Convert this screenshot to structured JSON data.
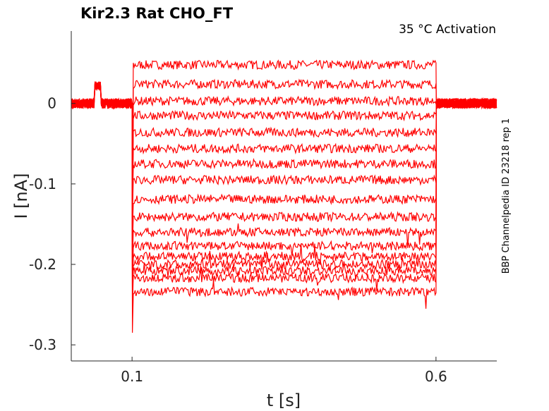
{
  "chart_data": {
    "type": "line",
    "title": "Kir2.3  Rat  CHO_FT",
    "subtitle": "35 °C  Activation",
    "side_label": "BBP Channelpedia ID 23218 rep 1",
    "xlabel": "t [s]",
    "ylabel": "I [nA]",
    "xlim": [
      0.0,
      0.7
    ],
    "ylim": [
      -0.32,
      0.09
    ],
    "x_ticks": [
      0.1,
      0.6
    ],
    "x_tick_labels": [
      "0.1",
      "0.6"
    ],
    "y_ticks": [
      0,
      -0.1,
      -0.2,
      -0.3
    ],
    "y_tick_labels": [
      "0",
      "-0.1",
      "-0.2",
      "-0.3"
    ],
    "grid": false,
    "series_color": "#ff0000",
    "baseline_level": 0.0,
    "prepulse": {
      "t_start": 0.038,
      "t_end": 0.049,
      "level": 0.022
    },
    "step_on": 0.1,
    "step_off": 0.6,
    "onset_peak": -0.285,
    "step_levels": [
      0.048,
      0.024,
      0.003,
      -0.015,
      -0.036,
      -0.056,
      -0.075,
      -0.095,
      -0.119,
      -0.141,
      -0.16,
      -0.177,
      -0.19,
      -0.2,
      -0.208,
      -0.217,
      -0.234
    ]
  }
}
